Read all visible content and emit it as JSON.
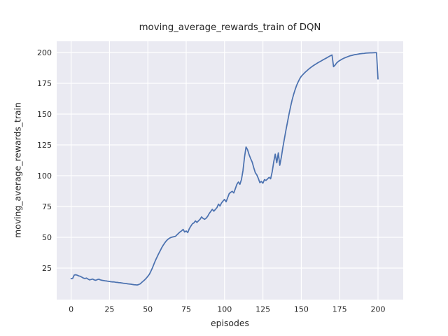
{
  "figure": {
    "background": "#ffffff"
  },
  "chart_data": {
    "type": "line",
    "title": "moving_average_rewards_train of DQN",
    "xlabel": "episodes",
    "ylabel": "moving_average_rewards_train",
    "x_ticks": [
      0,
      25,
      50,
      75,
      100,
      125,
      150,
      175,
      200
    ],
    "y_ticks": [
      25,
      50,
      75,
      100,
      125,
      150,
      175,
      200
    ],
    "xlim": [
      -9.4,
      216.4
    ],
    "ylim": [
      -0.6,
      209.1
    ],
    "grid": true,
    "legend_position": "none",
    "style": {
      "plot_background": "#eaeaf2",
      "grid_color": "#ffffff",
      "line_color": "#4c72b0",
      "text_color": "#262626",
      "line_width": 1.75
    },
    "series": [
      {
        "name": "moving_average_rewards_train",
        "x_start": 0,
        "x_step": 1,
        "values": [
          16.4,
          16.6,
          19.3,
          19.6,
          19.2,
          18.6,
          18.3,
          17.6,
          16.9,
          16.5,
          16.9,
          16.1,
          15.4,
          15.7,
          16.1,
          15.4,
          15.1,
          15.6,
          16.0,
          15.4,
          15.1,
          14.9,
          14.7,
          14.5,
          14.3,
          14.1,
          13.9,
          13.8,
          13.7,
          13.5,
          13.4,
          13.2,
          13.1,
          12.9,
          12.7,
          12.5,
          12.4,
          12.2,
          12.0,
          11.9,
          11.7,
          11.5,
          11.4,
          11.3,
          11.6,
          12.2,
          13.3,
          14.4,
          15.5,
          16.8,
          18.3,
          20.0,
          22.5,
          25.2,
          28.3,
          31.4,
          34.0,
          36.6,
          39.0,
          41.4,
          43.5,
          45.4,
          47.0,
          48.3,
          49.2,
          49.8,
          50.2,
          50.5,
          50.8,
          52.0,
          53.2,
          54.4,
          55.2,
          56.4,
          54.3,
          55.1,
          53.8,
          56.9,
          59.0,
          60.9,
          61.7,
          63.3,
          62.1,
          63.4,
          64.6,
          66.5,
          65.3,
          64.6,
          65.5,
          67.1,
          69.3,
          71.0,
          72.7,
          71.2,
          72.6,
          74.1,
          76.9,
          75.4,
          77.8,
          79.4,
          80.7,
          78.8,
          82.1,
          85.4,
          86.5,
          87.3,
          86.0,
          89.4,
          93.0,
          94.9,
          93.0,
          96.8,
          104.0,
          115.0,
          123.3,
          121.0,
          117.0,
          113.8,
          111.0,
          106.5,
          102.5,
          100.6,
          97.7,
          94.3,
          95.3,
          93.9,
          96.8,
          96.2,
          97.4,
          98.7,
          97.5,
          103.0,
          111.0,
          117.5,
          110.5,
          118.5,
          108.5,
          115.0,
          123.0,
          130.0,
          137.0,
          143.5,
          150.0,
          156.0,
          161.5,
          166.0,
          170.0,
          173.5,
          176.3,
          178.7,
          180.7,
          182.0,
          183.3,
          184.5,
          185.6,
          186.7,
          187.7,
          188.6,
          189.5,
          190.3,
          191.0,
          191.8,
          192.5,
          193.2,
          193.9,
          194.6,
          195.3,
          196.0,
          196.7,
          197.4,
          198.0,
          188.5,
          189.8,
          191.5,
          192.6,
          193.5,
          194.2,
          194.9,
          195.5,
          196.0,
          196.5,
          197.0,
          197.4,
          197.7,
          198.0,
          198.3,
          198.5,
          198.7,
          198.9,
          199.1,
          199.2,
          199.35,
          199.5,
          199.6,
          199.65,
          199.7,
          199.75,
          199.8,
          199.85,
          199.9,
          178.5
        ]
      }
    ]
  }
}
